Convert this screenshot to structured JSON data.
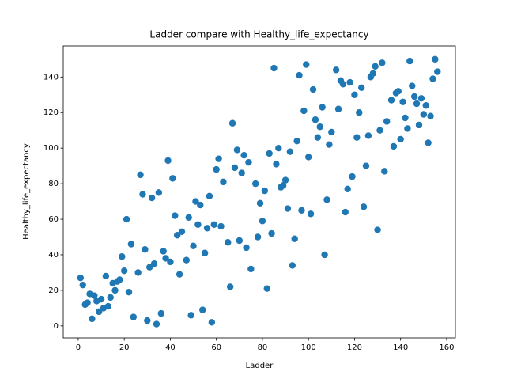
{
  "chart_data": {
    "type": "scatter",
    "title": "Ladder compare with Healthy_life_expectancy",
    "xlabel": "Ladder",
    "ylabel": "Healthy_life_expectancy",
    "color": "#1f77b4",
    "x": [
      1,
      2,
      3,
      4,
      5,
      6,
      7,
      8,
      9,
      10,
      11,
      12,
      13,
      14,
      15,
      16,
      17,
      18,
      19,
      20,
      21,
      22,
      23,
      24,
      26,
      27,
      28,
      29,
      30,
      31,
      32,
      33,
      34,
      35,
      36,
      37,
      38,
      39,
      40,
      41,
      42,
      43,
      44,
      45,
      47,
      48,
      49,
      50,
      51,
      52,
      53,
      54,
      55,
      56,
      57,
      58,
      59,
      60,
      61,
      62,
      63,
      65,
      66,
      67,
      68,
      69,
      70,
      71,
      72,
      73,
      74,
      75,
      77,
      78,
      79,
      80,
      81,
      82,
      83,
      84,
      85,
      86,
      87,
      88,
      89,
      90,
      91,
      92,
      93,
      94,
      95,
      96,
      97,
      98,
      99,
      100,
      101,
      102,
      103,
      104,
      105,
      106,
      107,
      108,
      109,
      110,
      112,
      113,
      114,
      115,
      116,
      117,
      118,
      119,
      120,
      121,
      122,
      123,
      124,
      125,
      126,
      127,
      128,
      129,
      130,
      131,
      132,
      133,
      134,
      136,
      137,
      138,
      139,
      140,
      141,
      142,
      143,
      144,
      145,
      146,
      147,
      148,
      149,
      150,
      151,
      152,
      153,
      154,
      155,
      156
    ],
    "y": [
      27,
      23,
      12,
      13,
      18,
      4,
      17,
      14,
      8,
      15,
      10,
      28,
      11,
      16,
      24,
      20,
      25,
      26,
      39,
      31,
      60,
      19,
      46,
      5,
      30,
      85,
      74,
      43,
      3,
      33,
      72,
      35,
      1,
      75,
      7,
      42,
      38,
      93,
      36,
      83,
      62,
      51,
      29,
      53,
      37,
      61,
      6,
      45,
      70,
      57,
      68,
      9,
      41,
      55,
      73,
      2,
      57,
      88,
      94,
      56,
      81,
      47,
      22,
      114,
      89,
      99,
      48,
      86,
      96,
      44,
      92,
      32,
      80,
      50,
      69,
      59,
      76,
      21,
      97,
      52,
      145,
      91,
      100,
      78,
      79,
      82,
      66,
      98,
      34,
      49,
      104,
      141,
      65,
      121,
      147,
      95,
      63,
      133,
      116,
      106,
      112,
      123,
      40,
      71,
      102,
      109,
      144,
      122,
      138,
      136,
      64,
      77,
      137,
      84,
      130,
      106,
      120,
      134,
      67,
      90,
      107,
      140,
      142,
      146,
      54,
      110,
      148,
      87,
      115,
      127,
      101,
      131,
      132,
      105,
      126,
      117,
      111,
      149,
      135,
      129,
      125,
      113,
      128,
      119,
      124,
      103,
      118,
      139,
      150,
      143
    ],
    "xlim": [
      -6.5,
      163.8
    ],
    "ylim": [
      -6.75,
      157.5
    ],
    "xticks": [
      0,
      20,
      40,
      60,
      80,
      100,
      120,
      140,
      160
    ],
    "yticks": [
      0,
      20,
      40,
      60,
      80,
      100,
      120,
      140
    ]
  }
}
